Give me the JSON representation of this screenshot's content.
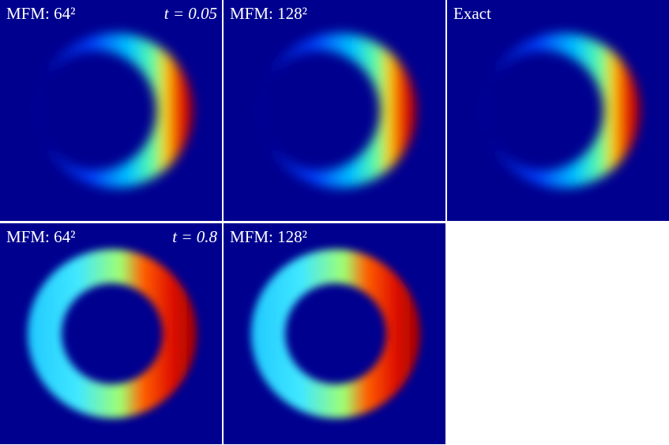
{
  "panels": [
    {
      "label": "MFM: 64²",
      "time": "t = 0.05"
    },
    {
      "label": "MFM: 128²"
    },
    {
      "label": "Exact"
    },
    {
      "label": "MFM: 64²",
      "time": "t = 0.8"
    },
    {
      "label": "MFM: 128²"
    }
  ]
}
